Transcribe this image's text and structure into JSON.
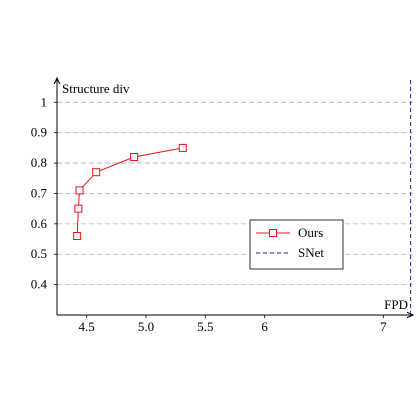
{
  "chart_data": {
    "type": "line",
    "title": "",
    "xlabel": "FPD",
    "ylabel": "Structure div",
    "xlim": [
      4.25,
      7.25
    ],
    "ylim": [
      0.3,
      1.08
    ],
    "xticks": [
      4.5,
      5.0,
      5.5,
      6,
      7
    ],
    "xtick_labels": [
      "4.5",
      "5.0",
      "5.5",
      "6",
      "7"
    ],
    "yticks": [
      0.4,
      0.5,
      0.6,
      0.7,
      0.8,
      0.9,
      1
    ],
    "ytick_labels": [
      "0.4",
      "0.5",
      "0.6",
      "0.7",
      "0.8",
      "0.9",
      "1"
    ],
    "grid": "horizontal dashed",
    "legend_position": "lower-right",
    "series": [
      {
        "name": "Ours",
        "color": "#e8131d",
        "marker": "square",
        "line_style": "solid",
        "points": [
          {
            "x": 4.42,
            "y": 0.56
          },
          {
            "x": 4.43,
            "y": 0.65
          },
          {
            "x": 4.44,
            "y": 0.71
          },
          {
            "x": 4.58,
            "y": 0.77
          },
          {
            "x": 4.9,
            "y": 0.82
          },
          {
            "x": 5.31,
            "y": 0.85
          }
        ]
      },
      {
        "name": "SNet",
        "color": "#1a1aa6",
        "marker": "none",
        "line_style": "dashed",
        "points": [
          {
            "x": 7.23,
            "y": 0.3
          },
          {
            "x": 7.23,
            "y": 1.08
          }
        ]
      }
    ]
  }
}
